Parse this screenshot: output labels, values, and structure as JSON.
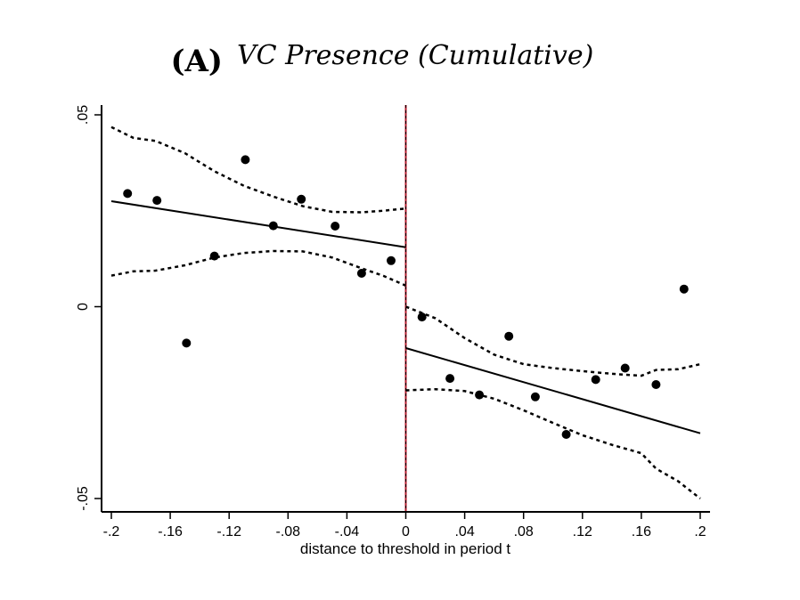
{
  "chart_data": {
    "type": "scatter",
    "title_prefix": "(A)",
    "title": "VC Presence (Cumulative)",
    "xlabel": "distance to threshold in period t",
    "ylabel": "",
    "xlim": [
      -0.2,
      0.2
    ],
    "ylim": [
      -0.05,
      0.05
    ],
    "x_ticks": [
      -0.2,
      -0.16,
      -0.12,
      -0.08,
      -0.04,
      0,
      0.04,
      0.08,
      0.12,
      0.16,
      0.2
    ],
    "x_tick_labels": [
      "-.2",
      "-.16",
      "-.12",
      "-.08",
      "-.04",
      "0",
      ".04",
      ".08",
      ".12",
      ".16",
      ".2"
    ],
    "y_ticks": [
      -0.05,
      0,
      0.05
    ],
    "y_tick_labels": [
      "-.05",
      "0",
      ".05"
    ],
    "threshold_x": 0,
    "threshold_color": "#b2182b",
    "points": [
      {
        "x": -0.189,
        "y": 0.0295
      },
      {
        "x": -0.169,
        "y": 0.0277
      },
      {
        "x": -0.149,
        "y": -0.0095
      },
      {
        "x": -0.13,
        "y": 0.0132
      },
      {
        "x": -0.109,
        "y": 0.0383
      },
      {
        "x": -0.09,
        "y": 0.0211
      },
      {
        "x": -0.071,
        "y": 0.028
      },
      {
        "x": -0.048,
        "y": 0.021
      },
      {
        "x": -0.03,
        "y": 0.0087
      },
      {
        "x": -0.01,
        "y": 0.012
      },
      {
        "x": 0.011,
        "y": -0.0027
      },
      {
        "x": 0.03,
        "y": -0.0187
      },
      {
        "x": 0.05,
        "y": -0.023
      },
      {
        "x": 0.07,
        "y": -0.0077
      },
      {
        "x": 0.088,
        "y": -0.0235
      },
      {
        "x": 0.109,
        "y": -0.0333
      },
      {
        "x": 0.129,
        "y": -0.019
      },
      {
        "x": 0.149,
        "y": -0.016
      },
      {
        "x": 0.17,
        "y": -0.0203
      },
      {
        "x": 0.189,
        "y": 0.0046
      }
    ],
    "fit_left": [
      {
        "x": -0.2,
        "y": 0.0275
      },
      {
        "x": 0,
        "y": 0.0155
      }
    ],
    "fit_right": [
      {
        "x": 0,
        "y": -0.0108
      },
      {
        "x": 0.2,
        "y": -0.033
      }
    ],
    "ci_left_upper": [
      {
        "x": -0.2,
        "y": 0.0468
      },
      {
        "x": -0.185,
        "y": 0.044
      },
      {
        "x": -0.17,
        "y": 0.0432
      },
      {
        "x": -0.15,
        "y": 0.04
      },
      {
        "x": -0.13,
        "y": 0.0353
      },
      {
        "x": -0.11,
        "y": 0.0315
      },
      {
        "x": -0.09,
        "y": 0.0287
      },
      {
        "x": -0.07,
        "y": 0.0262
      },
      {
        "x": -0.05,
        "y": 0.0247
      },
      {
        "x": -0.03,
        "y": 0.0246
      },
      {
        "x": -0.015,
        "y": 0.025
      },
      {
        "x": 0,
        "y": 0.0256
      }
    ],
    "ci_left_lower": [
      {
        "x": -0.2,
        "y": 0.0081
      },
      {
        "x": -0.185,
        "y": 0.0092
      },
      {
        "x": -0.17,
        "y": 0.0094
      },
      {
        "x": -0.15,
        "y": 0.0108
      },
      {
        "x": -0.13,
        "y": 0.0128
      },
      {
        "x": -0.11,
        "y": 0.014
      },
      {
        "x": -0.09,
        "y": 0.0145
      },
      {
        "x": -0.07,
        "y": 0.0144
      },
      {
        "x": -0.05,
        "y": 0.0128
      },
      {
        "x": -0.03,
        "y": 0.01
      },
      {
        "x": -0.015,
        "y": 0.008
      },
      {
        "x": 0,
        "y": 0.0055
      }
    ],
    "ci_right_upper": [
      {
        "x": 0,
        "y": 0.0
      },
      {
        "x": 0.02,
        "y": -0.003
      },
      {
        "x": 0.04,
        "y": -0.0082
      },
      {
        "x": 0.06,
        "y": -0.0125
      },
      {
        "x": 0.08,
        "y": -0.015
      },
      {
        "x": 0.1,
        "y": -0.016
      },
      {
        "x": 0.12,
        "y": -0.0168
      },
      {
        "x": 0.14,
        "y": -0.0175
      },
      {
        "x": 0.16,
        "y": -0.018
      },
      {
        "x": 0.17,
        "y": -0.0165
      },
      {
        "x": 0.185,
        "y": -0.0163
      },
      {
        "x": 0.2,
        "y": -0.015
      }
    ],
    "ci_right_lower": [
      {
        "x": 0,
        "y": -0.0218
      },
      {
        "x": 0.02,
        "y": -0.0215
      },
      {
        "x": 0.04,
        "y": -0.022
      },
      {
        "x": 0.06,
        "y": -0.024
      },
      {
        "x": 0.08,
        "y": -0.027
      },
      {
        "x": 0.1,
        "y": -0.0303
      },
      {
        "x": 0.12,
        "y": -0.0335
      },
      {
        "x": 0.14,
        "y": -0.036
      },
      {
        "x": 0.16,
        "y": -0.0382
      },
      {
        "x": 0.17,
        "y": -0.0422
      },
      {
        "x": 0.185,
        "y": -0.0455
      },
      {
        "x": 0.2,
        "y": -0.05
      }
    ]
  }
}
